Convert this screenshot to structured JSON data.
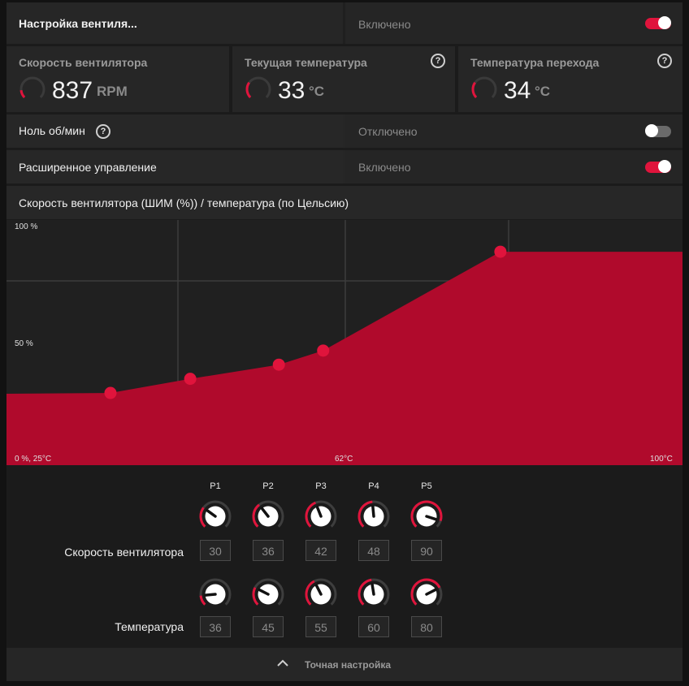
{
  "header": {
    "title": "Настройка вентиля...",
    "state": "Включено"
  },
  "stats": [
    {
      "label": "Скорость вентилятора",
      "value": "837",
      "unit": "RPM",
      "level": 0.15
    },
    {
      "label": "Текущая температура",
      "value": "33",
      "unit": "°C",
      "level": 0.3
    },
    {
      "label": "Температура перехода",
      "value": "34",
      "unit": "°C",
      "level": 0.3
    }
  ],
  "zero_rpm": {
    "label": "Ноль об/мин",
    "state": "Отключено"
  },
  "advanced": {
    "label": "Расширенное управление",
    "state": "Включено"
  },
  "chart_section": {
    "title": "Скорость вентилятора (ШИМ (%)) / температура (по Цельсию)"
  },
  "chart_data": {
    "type": "area",
    "x_label_left": "0 %, 25°C",
    "x_label_mid": "62°C",
    "x_label_right": "100°C",
    "y_label_top": "100 %",
    "y_label_mid": "50 %",
    "xlim": [
      25,
      100
    ],
    "ylim": [
      0,
      100
    ],
    "points": [
      {
        "temp": 36,
        "speed": 30
      },
      {
        "temp": 45,
        "speed": 36
      },
      {
        "temp": 55,
        "speed": 42
      },
      {
        "temp": 60,
        "speed": 48
      },
      {
        "temp": 80,
        "speed": 90
      }
    ]
  },
  "points_table": {
    "headers": [
      "P1",
      "P2",
      "P3",
      "P4",
      "P5"
    ],
    "speed_label": "Скорость вентилятора",
    "temp_label": "Температура",
    "speeds": [
      "30",
      "36",
      "42",
      "48",
      "90"
    ],
    "temps": [
      "36",
      "45",
      "55",
      "60",
      "80"
    ]
  },
  "footer": {
    "label": "Точная настройка"
  },
  "colors": {
    "accent": "#e0143c",
    "fill": "#b00a2c"
  }
}
